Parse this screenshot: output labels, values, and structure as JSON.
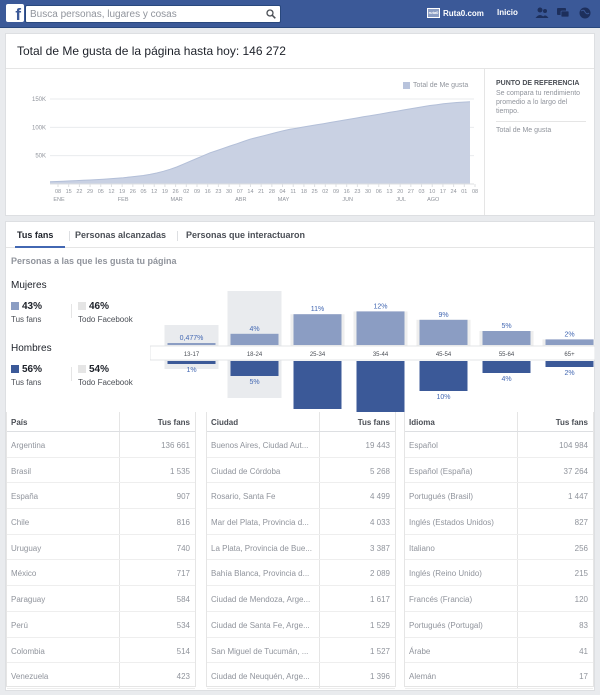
{
  "header": {
    "search_placeholder": "Busca personas, lugares y cosas",
    "profile_name": "Ruta0.com",
    "avatar_text": "ruta0",
    "home_label": "Inicio"
  },
  "likes": {
    "title": "Total de Me gusta de la página hasta hoy: 146 272",
    "legend": "Total de Me gusta",
    "reference": {
      "title": "PUNTO DE REFERENCIA",
      "description": "Se compara tu rendimiento promedio a lo largo del tiempo.",
      "metric": "Total de Me gusta"
    }
  },
  "chart_data": {
    "type": "area",
    "series": [
      {
        "name": "Total de Me gusta",
        "values": [
          4000,
          4500,
          5000,
          5500,
          6000,
          6500,
          7000,
          7700,
          8500,
          9300,
          10200,
          11200,
          12300,
          13600,
          15000,
          17000,
          19500,
          22500,
          26000,
          30000,
          35000,
          40000,
          45000,
          50000,
          55000,
          59000,
          63000,
          67000,
          71000,
          75000,
          79000,
          82000,
          85000,
          88000,
          91000,
          94000,
          96500,
          98500,
          100500,
          102500,
          104500,
          106500,
          108500,
          110500,
          112500,
          114500,
          116500,
          118500,
          120500,
          122500,
          124500,
          126500,
          128500,
          130500,
          132500,
          134500,
          136500,
          138500,
          140000,
          141500,
          142800,
          143800,
          144500,
          145200
        ]
      }
    ],
    "yticks": [
      "50K",
      "100K",
      "150K"
    ],
    "ylim": [
      0,
      150000
    ],
    "xtick_labels": [
      "08",
      "15",
      "22",
      "29",
      "05",
      "12",
      "19",
      "26",
      "05",
      "12",
      "19",
      "26",
      "02",
      "09",
      "16",
      "23",
      "30",
      "07",
      "14",
      "21",
      "28",
      "04",
      "11",
      "18",
      "25",
      "02",
      "09",
      "16",
      "23",
      "30",
      "06",
      "13",
      "20",
      "27",
      "03",
      "10",
      "17",
      "24",
      "01",
      "08"
    ],
    "months": [
      {
        "label": "ENE",
        "tick": 0
      },
      {
        "label": "FEB",
        "tick": 6
      },
      {
        "label": "MAR",
        "tick": 11
      },
      {
        "label": "ABR",
        "tick": 17
      },
      {
        "label": "MAY",
        "tick": 21
      },
      {
        "label": "JUN",
        "tick": 27
      },
      {
        "label": "JUL",
        "tick": 32
      },
      {
        "label": "AGO",
        "tick": 35
      },
      {
        "label": "SEP",
        "tick": 41
      },
      {
        "label": "OCT",
        "tick": 46
      }
    ],
    "grid": true,
    "demographics": {
      "type": "bar",
      "categories": [
        "13-17",
        "18-24",
        "25-34",
        "35-44",
        "45-54",
        "55-64",
        "65+"
      ],
      "series": [
        {
          "name": "Mujeres",
          "values": [
            0.477,
            4,
            11,
            12,
            9,
            5,
            2
          ],
          "labels": [
            "0,477%",
            "4%",
            "11%",
            "12%",
            "9%",
            "5%",
            "2%"
          ]
        },
        {
          "name": "Hombres",
          "values": [
            1,
            5,
            16,
            18,
            10,
            4,
            2
          ],
          "labels": [
            "1%",
            "5%",
            "16%",
            "18%",
            "10%",
            "4%",
            "2%"
          ]
        }
      ],
      "highlighted": [
        "13-17",
        "18-24"
      ]
    }
  },
  "audience": {
    "tabs": [
      "Tus fans",
      "Personas alcanzadas",
      "Personas que interactuaron"
    ],
    "subtitle": "Personas a las que les gusta tu página",
    "women": {
      "label": "Mujeres",
      "fans_pct": "43%",
      "fb_pct": "46%",
      "fans_label": "Tus fans",
      "fb_label": "Todo Facebook"
    },
    "men": {
      "label": "Hombres",
      "fans_pct": "56%",
      "fb_pct": "54%",
      "fans_label": "Tus fans",
      "fb_label": "Todo Facebook"
    }
  },
  "tables": {
    "country": {
      "headers": [
        "País",
        "Tus fans"
      ],
      "rows": [
        [
          "Argentina",
          "136 661"
        ],
        [
          "Brasil",
          "1 535"
        ],
        [
          "España",
          "907"
        ],
        [
          "Chile",
          "816"
        ],
        [
          "Uruguay",
          "740"
        ],
        [
          "México",
          "717"
        ],
        [
          "Paraguay",
          "584"
        ],
        [
          "Perú",
          "534"
        ],
        [
          "Colombia",
          "514"
        ],
        [
          "Venezuela",
          "423"
        ]
      ]
    },
    "city": {
      "headers": [
        "Ciudad",
        "Tus fans"
      ],
      "rows": [
        [
          "Buenos Aires, Ciudad Aut...",
          "19 443"
        ],
        [
          "Ciudad de Córdoba",
          "5 268"
        ],
        [
          "Rosario, Santa Fe",
          "4 499"
        ],
        [
          "Mar del Plata, Provincia d...",
          "4 033"
        ],
        [
          "La Plata, Provincia de Bue...",
          "3 387"
        ],
        [
          "Bahía Blanca, Provincia d...",
          "2 089"
        ],
        [
          "Ciudad de Mendoza, Arge...",
          "1 617"
        ],
        [
          "Ciudad de Santa Fe, Arge...",
          "1 529"
        ],
        [
          "San Miguel de Tucumán, ...",
          "1 527"
        ],
        [
          "Ciudad de Neuquén, Arge...",
          "1 396"
        ]
      ]
    },
    "language": {
      "headers": [
        "Idioma",
        "Tus fans"
      ],
      "rows": [
        [
          "Español",
          "104 984"
        ],
        [
          "Español (España)",
          "37 264"
        ],
        [
          "Portugués (Brasil)",
          "1 447"
        ],
        [
          "Inglés (Estados Unidos)",
          "827"
        ],
        [
          "Italiano",
          "256"
        ],
        [
          "Inglés (Reino Unido)",
          "215"
        ],
        [
          "Francés (Francia)",
          "120"
        ],
        [
          "Portugués (Portugal)",
          "83"
        ],
        [
          "Árabe",
          "41"
        ],
        [
          "Alemán",
          "17"
        ]
      ]
    }
  },
  "colors": {
    "brand": "#3b5998",
    "area": "#c9d1e3",
    "women": "#8b9dc3",
    "men": "#3b5998",
    "facebook": "#e5e5e5"
  }
}
